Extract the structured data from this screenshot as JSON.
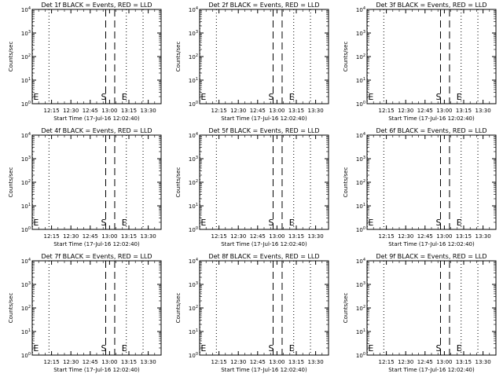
{
  "chart_data": {
    "type": "line",
    "ylabel": "Counts/sec",
    "xlabel": "Start Time (17-Jul-16 12:02:40)",
    "xtick_labels": [
      "12:15",
      "12:30",
      "12:45",
      "13:00",
      "13:15",
      "13:30"
    ],
    "xtick_minutes": [
      15,
      30,
      45,
      60,
      75,
      90
    ],
    "xlim_minutes": [
      0,
      100
    ],
    "ylim": [
      1,
      10000
    ],
    "y_scale": "log",
    "ytick_labels": [
      "10^0",
      "10^1",
      "10^2",
      "10^3",
      "10^4"
    ],
    "markers": [
      {
        "label": "E",
        "minutes": 0.2,
        "style": "dotted"
      },
      {
        "label": "S",
        "minutes": 57,
        "style": "dashed"
      },
      {
        "label": "",
        "minutes": 64,
        "style": "dashed"
      },
      {
        "label": "E",
        "minutes": 73,
        "style": "dotted"
      },
      {
        "label": "",
        "minutes": 13,
        "style": "dotted"
      },
      {
        "label": "",
        "minutes": 86,
        "style": "dotted"
      }
    ],
    "series_legend": "BLACK = Events, RED = LLD",
    "panels": [
      {
        "title": "Det 1f BLACK = Events, RED = LLD",
        "xlabel": "Start Time (17-Jul-16 12:02:40)"
      },
      {
        "title": "Det 2f BLACK = Events, RED = LLD",
        "xlabel": "Start Time (17-Jul-16 12:02:40)"
      },
      {
        "title": "Det 3f BLACK = Events, RED = LLD",
        "xlabel": "Start Time (17-Jul-16 12:02:40)"
      },
      {
        "title": "Det 4f BLACK = Events, RED = LLD",
        "xlabel": "Start Time (17-Jul-16 12:02:40)"
      },
      {
        "title": "Det 5f BLACK = Events, RED = LLD",
        "xlabel": "Start Time (17-Jul-16 12:02:40)"
      },
      {
        "title": "Det 6f BLACK = Events, RED = LLD",
        "xlabel": "Start Time (17-Jul-16 12:02:40)"
      },
      {
        "title": "Det 7f BLACK = Events, RED = LLD",
        "xlabel": "Start Time (17-Jul-16 12:02:40)"
      },
      {
        "title": "Det 8f BLACK = Events, RED = LLD",
        "xlabel": "Start Time (17-Jul-16 12:02:40)"
      },
      {
        "title": "Det 9f BLACK = Events, RED = LLD",
        "xlabel": "Start Time (17-Jul-16 12:02:40)"
      }
    ]
  }
}
